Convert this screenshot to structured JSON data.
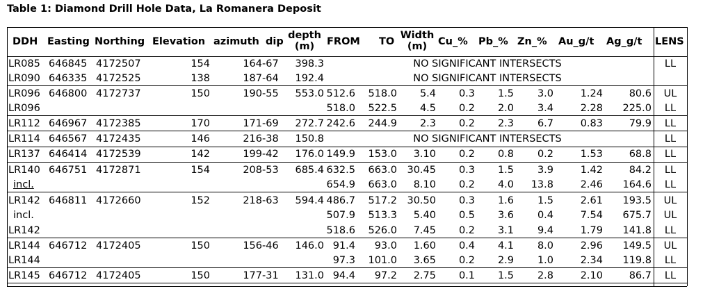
{
  "title": "Table 1: Diamond Drill Hole Data, La Romanera Deposit",
  "headers": {
    "ddh": "DDH",
    "easting": "Easting",
    "northing": "Northing",
    "elevation": "Elevation",
    "azimuth": "azimuth",
    "dip": "dip",
    "depth_line1": "depth",
    "depth_line2": "(m)",
    "from": "FROM",
    "to": "TO",
    "width_line1": "Width",
    "width_line2": "(m)",
    "cu": "Cu_%",
    "pb": "Pb_%",
    "zn": "Zn_%",
    "au": "Au_g/t",
    "ag": "Ag_g/t",
    "lens": "LENS"
  },
  "rows": [
    {
      "ddh": "LR085",
      "easting": "646845",
      "northing": "4172507",
      "elevation": "154",
      "azimuth": "164",
      "dip": "-67",
      "depth": "398.3",
      "note": "NO SIGNIFICANT INTERSECTS",
      "lens": "LL"
    },
    {
      "ddh": "LR090",
      "easting": "646335",
      "northing": "4172525",
      "elevation": "138",
      "azimuth": "187",
      "dip": "-64",
      "depth": "192.4",
      "note": "NO SIGNIFICANT INTERSECTS",
      "lens": ""
    },
    {
      "ddh": "LR096",
      "easting": "646800",
      "northing": "4172737",
      "elevation": "150",
      "azimuth": "190",
      "dip": "-55",
      "depth": "553.0",
      "from": "512.6",
      "to": "518.0",
      "width": "5.4",
      "cu": "0.3",
      "pb": "1.5",
      "zn": "3.0",
      "au": "1.24",
      "ag": "80.6",
      "lens": "UL"
    },
    {
      "ddh": "LR096",
      "from": "518.0",
      "to": "522.5",
      "width": "4.5",
      "cu": "0.2",
      "pb": "2.0",
      "zn": "3.4",
      "au": "2.28",
      "ag": "225.0",
      "lens": "LL"
    },
    {
      "ddh": "LR112",
      "easting": "646967",
      "northing": "4172385",
      "elevation": "170",
      "azimuth": "171",
      "dip": "-69",
      "depth": "272.7",
      "from": "242.6",
      "to": "244.9",
      "width": "2.3",
      "cu": "0.2",
      "pb": "2.3",
      "zn": "6.7",
      "au": "0.83",
      "ag": "79.9",
      "lens": "LL"
    },
    {
      "ddh": "LR114",
      "easting": "646567",
      "northing": "4172435",
      "elevation": "146",
      "azimuth": "216",
      "dip": "-38",
      "depth": "150.8",
      "note": "NO SIGNIFICANT INTERSECTS",
      "lens": "LL"
    },
    {
      "ddh": "LR137",
      "easting": "646414",
      "northing": "4172539",
      "elevation": "142",
      "azimuth": "199",
      "dip": "-42",
      "depth": "176.0",
      "from": "149.9",
      "to": "153.0",
      "width": "3.10",
      "cu": "0.2",
      "pb": "0.8",
      "zn": "0.2",
      "au": "1.53",
      "ag": "68.8",
      "lens": "LL"
    },
    {
      "ddh": "LR140",
      "easting": "646751",
      "northing": "4172871",
      "elevation": "154",
      "azimuth": "208",
      "dip": "-53",
      "depth": "685.4",
      "from": "632.5",
      "to": "663.0",
      "width": "30.45",
      "cu": "0.3",
      "pb": "1.5",
      "zn": "3.9",
      "au": "1.42",
      "ag": "84.2",
      "lens": "LL"
    },
    {
      "ddh": "incl.",
      "from": "654.9",
      "to": "663.0",
      "width": "8.10",
      "cu": "0.2",
      "pb": "4.0",
      "zn": "13.8",
      "au": "2.46",
      "ag": "164.6",
      "lens": "LL"
    },
    {
      "ddh": "LR142",
      "easting": "646811",
      "northing": "4172660",
      "elevation": "152",
      "azimuth": "218",
      "dip": "-63",
      "depth": "594.4",
      "from": "486.7",
      "to": "517.2",
      "width": "30.50",
      "cu": "0.3",
      "pb": "1.6",
      "zn": "1.5",
      "au": "2.61",
      "ag": "193.5",
      "lens": "UL"
    },
    {
      "ddh": "incl.",
      "from": "507.9",
      "to": "513.3",
      "width": "5.40",
      "cu": "0.5",
      "pb": "3.6",
      "zn": "0.4",
      "au": "7.54",
      "ag": "675.7",
      "lens": "UL"
    },
    {
      "ddh": "LR142",
      "from": "518.6",
      "to": "526.0",
      "width": "7.45",
      "cu": "0.2",
      "pb": "3.1",
      "zn": "9.4",
      "au": "1.79",
      "ag": "141.8",
      "lens": "LL"
    },
    {
      "ddh": "LR144",
      "easting": "646712",
      "northing": "4172405",
      "elevation": "150",
      "azimuth": "156",
      "dip": "-46",
      "depth": "146.0",
      "from": "91.4",
      "to": "93.0",
      "width": "1.60",
      "cu": "0.4",
      "pb": "4.1",
      "zn": "8.0",
      "au": "2.96",
      "ag": "149.5",
      "lens": "UL"
    },
    {
      "ddh": "LR144",
      "from": "97.3",
      "to": "101.0",
      "width": "3.65",
      "cu": "0.2",
      "pb": "2.9",
      "zn": "1.0",
      "au": "2.34",
      "ag": "119.8",
      "lens": "LL"
    },
    {
      "ddh": "LR145",
      "easting": "646712",
      "northing": "4172405",
      "elevation": "150",
      "azimuth": "177",
      "dip": "-31",
      "depth": "131.0",
      "from": "94.4",
      "to": "97.2",
      "width": "2.75",
      "cu": "0.1",
      "pb": "1.5",
      "zn": "2.8",
      "au": "2.10",
      "ag": "86.7",
      "lens": "LL"
    }
  ]
}
